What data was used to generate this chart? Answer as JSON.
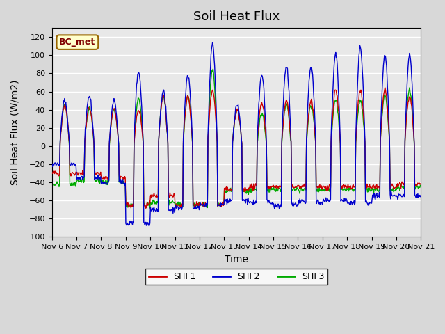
{
  "title": "Soil Heat Flux",
  "ylabel": "Soil Heat Flux (W/m2)",
  "xlabel": "Time",
  "ylim": [
    -100,
    130
  ],
  "yticks": [
    -100,
    -80,
    -60,
    -40,
    -20,
    0,
    20,
    40,
    60,
    80,
    100,
    120
  ],
  "xtick_labels": [
    "Nov 6",
    "Nov 7",
    "Nov 8",
    "Nov 9",
    "Nov 10",
    "Nov 11",
    "Nov 12",
    "Nov 13",
    "Nov 14",
    "Nov 15",
    "Nov 16",
    "Nov 17",
    "Nov 18",
    "Nov 19",
    "Nov 20",
    "Nov 21"
  ],
  "shf1_color": "#cc0000",
  "shf2_color": "#0000cc",
  "shf3_color": "#00aa00",
  "legend_label1": "SHF1",
  "legend_label2": "SHF2",
  "legend_label3": "SHF3",
  "annotation_text": "BC_met",
  "plot_bg_color": "#e8e8e8",
  "fig_bg_color": "#d8d8d8",
  "title_fontsize": 13,
  "label_fontsize": 10,
  "day_peaks_shf1": [
    45.0,
    42.0,
    40.0,
    40.0,
    55.0,
    55.0,
    60.0,
    40.0,
    48.0,
    50.0,
    50.0,
    62.0,
    62.0,
    62.0,
    55.0
  ],
  "day_peaks_shf2": [
    50.0,
    55.0,
    50.0,
    82.0,
    60.0,
    78.0,
    113.0,
    45.0,
    78.0,
    88.0,
    88.0,
    101.0,
    109.0,
    100.0,
    100.0
  ],
  "day_peaks_shf3": [
    45.0,
    42.0,
    40.0,
    52.0,
    55.0,
    55.0,
    84.0,
    40.0,
    35.0,
    45.0,
    45.0,
    50.0,
    50.0,
    55.0,
    62.0
  ],
  "day_night_shf1": [
    -30.0,
    -30.0,
    -35.0,
    -65.0,
    -55.0,
    -65.0,
    -65.0,
    -48.0,
    -45.0,
    -45.0,
    -45.0,
    -45.0,
    -45.0,
    -45.0,
    -42.0
  ],
  "day_night_shf2": [
    -20.0,
    -35.0,
    -40.0,
    -85.0,
    -70.0,
    -68.0,
    -65.0,
    -60.0,
    -62.0,
    -65.0,
    -62.0,
    -60.0,
    -62.0,
    -55.0,
    -55.0
  ],
  "day_night_shf3": [
    -42.0,
    -38.0,
    -40.0,
    -65.0,
    -62.0,
    -65.0,
    -65.0,
    -50.0,
    -48.0,
    -48.0,
    -48.0,
    -48.0,
    -48.0,
    -48.0,
    -45.0
  ]
}
